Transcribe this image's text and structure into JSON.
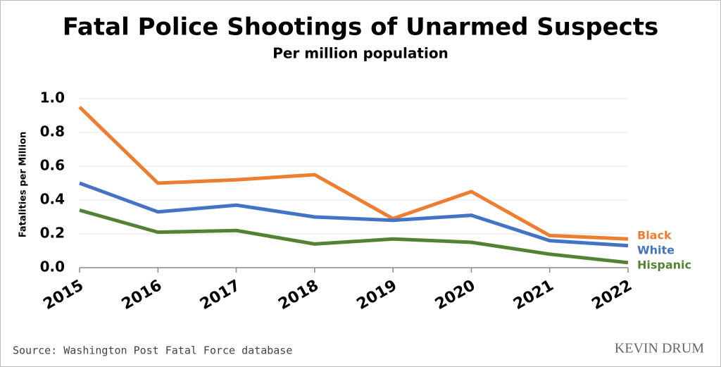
{
  "chart_data": {
    "type": "line",
    "title": "Fatal Police Shootings of Unarmed Suspects",
    "subtitle": "Per million population",
    "y_label": "Fatalities per Million",
    "source": "Source: Washington Post Fatal Force database",
    "credit": "KEVIN DRUM",
    "x": [
      2015,
      2016,
      2017,
      2018,
      2019,
      2020,
      2021,
      2022
    ],
    "xlim": [
      2015,
      2022
    ],
    "xticks": [
      2015,
      2016,
      2017,
      2018,
      2019,
      2020,
      2021,
      2022
    ],
    "ylim": [
      0,
      1
    ],
    "yticks": [
      {
        "value": 0,
        "label": "0.0"
      },
      {
        "value": 0.2,
        "label": "0.2"
      },
      {
        "value": 0.4,
        "label": "0.4"
      },
      {
        "value": 0.6,
        "label": "0.6"
      },
      {
        "value": 0.8,
        "label": "0.8"
      },
      {
        "value": 1,
        "label": "1.0"
      }
    ],
    "grid": true,
    "series": [
      {
        "name": "Black",
        "color": "#ed7d31",
        "values": [
          0.95,
          0.5,
          0.52,
          0.55,
          0.29,
          0.45,
          0.19,
          0.17
        ]
      },
      {
        "name": "White",
        "color": "#4472c4",
        "values": [
          0.5,
          0.33,
          0.37,
          0.3,
          0.28,
          0.31,
          0.16,
          0.13
        ]
      },
      {
        "name": "Hispanic",
        "color": "#548235",
        "values": [
          0.34,
          0.21,
          0.22,
          0.14,
          0.17,
          0.15,
          0.08,
          0.03
        ]
      }
    ]
  }
}
